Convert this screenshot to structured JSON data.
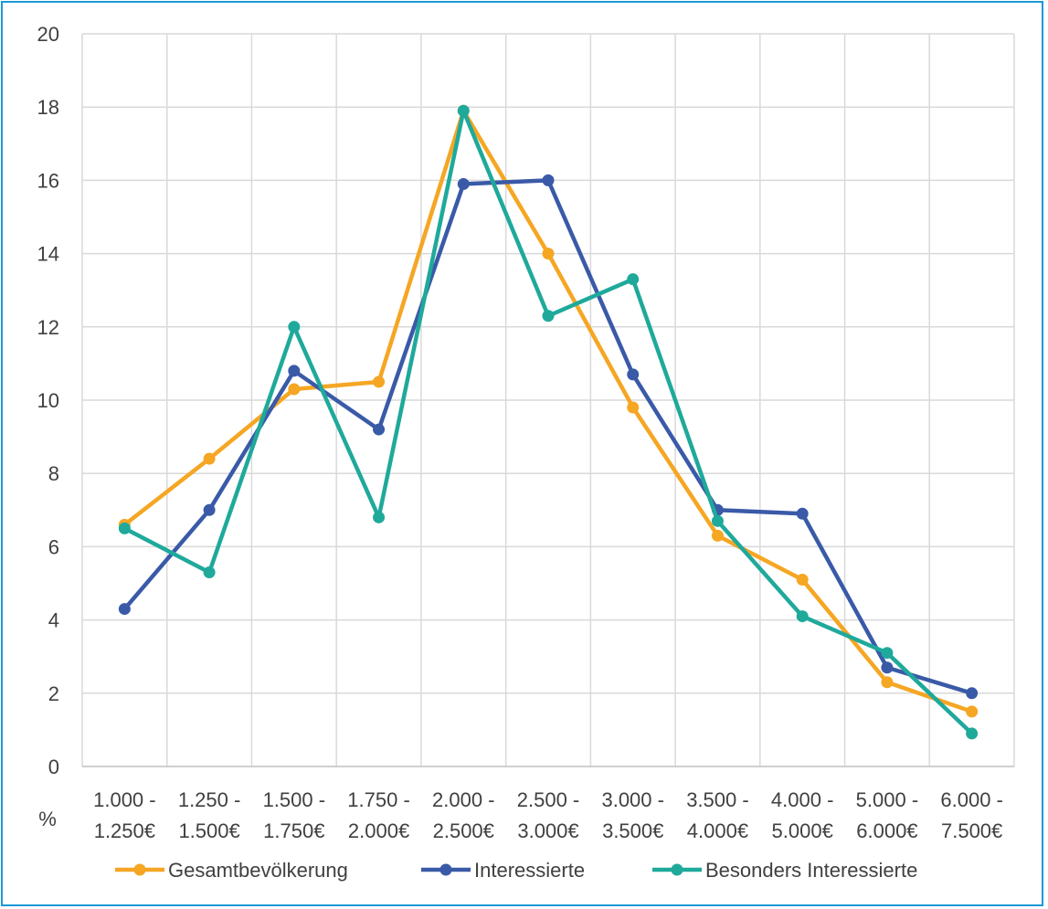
{
  "chart_data": {
    "type": "line",
    "title": "",
    "xlabel": "",
    "ylabel": "%",
    "ylim": [
      0,
      20
    ],
    "yticks": [
      0,
      2,
      4,
      6,
      8,
      10,
      12,
      14,
      16,
      18,
      20
    ],
    "ytick_labels": [
      "0",
      "2",
      "4",
      "6",
      "8",
      "10",
      "12",
      "14",
      "16",
      "18",
      "20"
    ],
    "categories": [
      [
        "1.000 -",
        "1.250€"
      ],
      [
        "1.250 -",
        "1.500€"
      ],
      [
        "1.500 -",
        "1.750€"
      ],
      [
        "1.750 -",
        "2.000€"
      ],
      [
        "2.000 -",
        "2.500€"
      ],
      [
        "2.500 -",
        "3.000€"
      ],
      [
        "3.000 -",
        "3.500€"
      ],
      [
        "3.500 -",
        "4.000€"
      ],
      [
        "4.000 -",
        "5.000€"
      ],
      [
        "5.000 -",
        "6.000€"
      ],
      [
        "6.000 -",
        "7.500€"
      ]
    ],
    "grid": true,
    "legend_position": "bottom",
    "series": [
      {
        "name": "Gesamtbevölkerung",
        "color": "#f5a623",
        "values": [
          6.6,
          8.4,
          10.3,
          10.5,
          17.9,
          14.0,
          9.8,
          6.3,
          5.1,
          2.3,
          1.5
        ]
      },
      {
        "name": "Interessierte",
        "color": "#3a5aa8",
        "values": [
          4.3,
          7.0,
          10.8,
          9.2,
          15.9,
          16.0,
          10.7,
          7.0,
          6.9,
          2.7,
          2.0
        ]
      },
      {
        "name": "Besonders Interessierte",
        "color": "#1fa99b",
        "values": [
          6.5,
          5.3,
          12.0,
          6.8,
          17.9,
          12.3,
          13.3,
          6.7,
          4.1,
          3.1,
          0.9
        ]
      }
    ]
  }
}
